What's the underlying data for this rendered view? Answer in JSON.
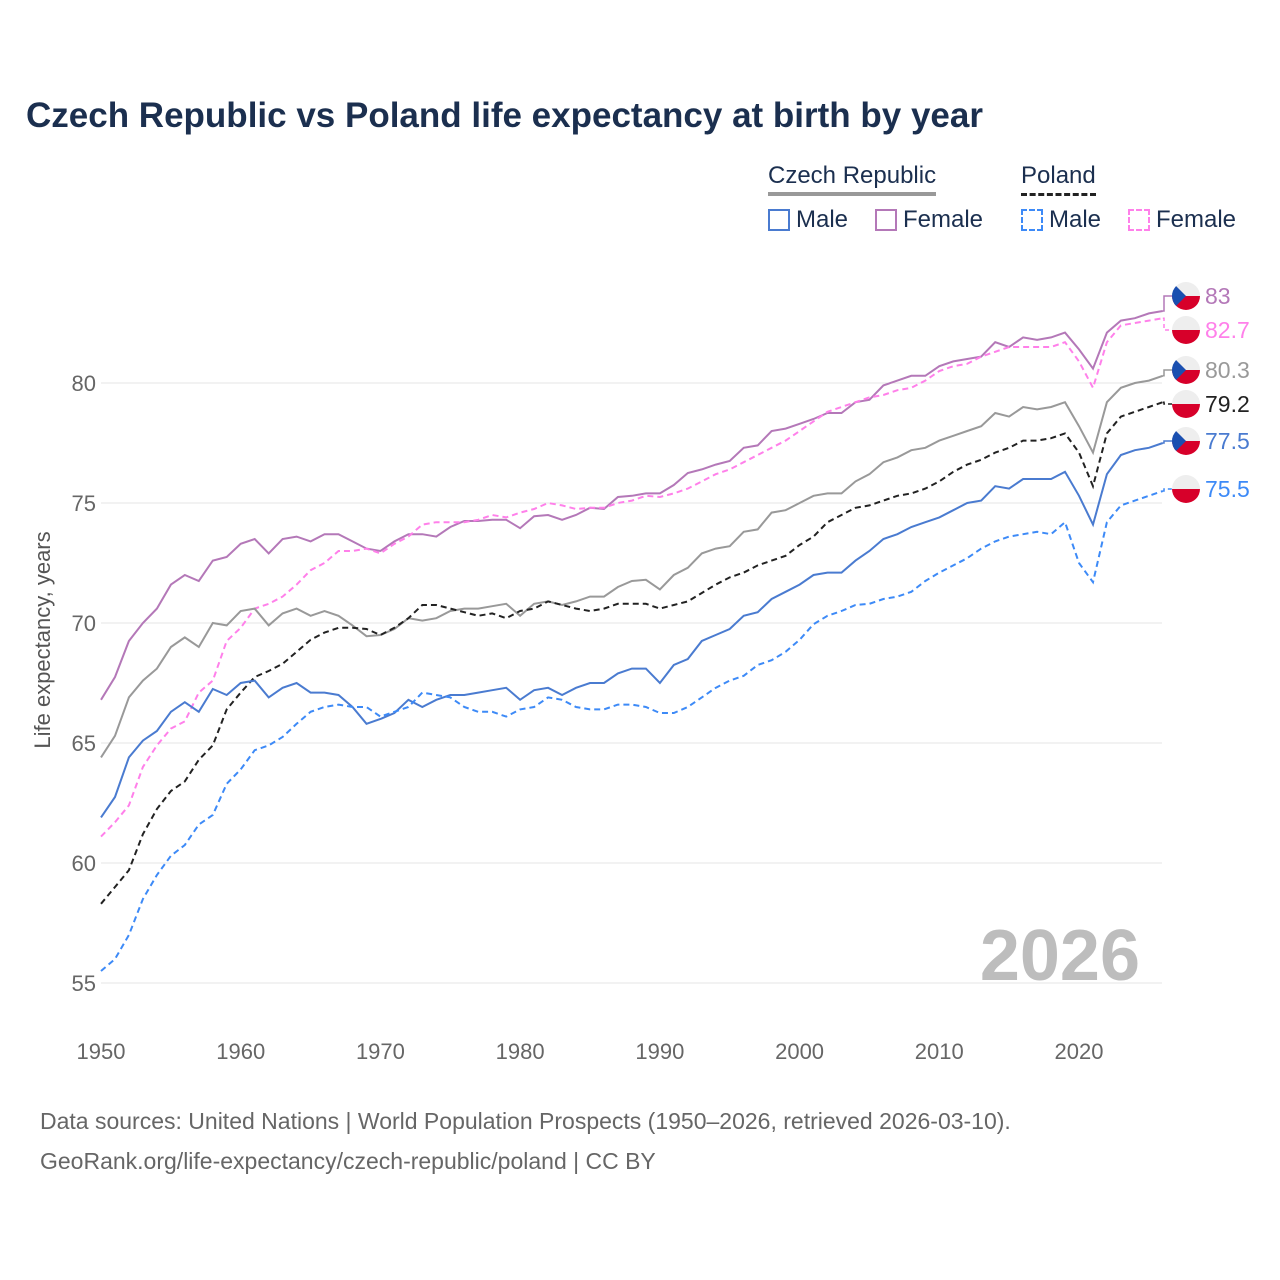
{
  "title": "Czech Republic vs Poland life expectancy at birth by year",
  "legend": {
    "groups": [
      {
        "name": "Czech Republic",
        "items": [
          "Male",
          "Female"
        ]
      },
      {
        "name": "Poland",
        "items": [
          "Male",
          "Female"
        ]
      }
    ]
  },
  "watermark_year": "2026",
  "sources": [
    "Data sources: United Nations | World Population Prospects (1950–2026, retrieved 2026-03-10).",
    "GeoRank.org/life-expectancy/czech-republic/poland | CC BY"
  ],
  "chart_data": {
    "type": "line",
    "title": "Czech Republic vs Poland life expectancy at birth by year",
    "xlabel": "",
    "ylabel": "Life expectancy, years",
    "xlim": [
      1950,
      2026
    ],
    "ylim": [
      55,
      84
    ],
    "xticks": [
      1950,
      1960,
      1970,
      1980,
      1990,
      2000,
      2010,
      2020
    ],
    "yticks": [
      55,
      60,
      65,
      70,
      75,
      80
    ],
    "grid": true,
    "legend": "top-right",
    "x_start": 1950,
    "series": [
      {
        "name": "Czech Republic Female",
        "country": "cz",
        "color": "#b478b8",
        "dash": false,
        "end_label": "83",
        "values": [
          66.8,
          67.75,
          69.25,
          70,
          70.6,
          71.6,
          72,
          71.75,
          72.6,
          72.75,
          73.3,
          73.5,
          72.9,
          73.5,
          73.6,
          73.4,
          73.7,
          73.7,
          73.4,
          73.1,
          73,
          73.4,
          73.7,
          73.7,
          73.6,
          74,
          74.25,
          74.25,
          74.3,
          74.3,
          73.95,
          74.45,
          74.5,
          74.3,
          74.5,
          74.8,
          74.75,
          75.25,
          75.3,
          75.4,
          75.4,
          75.75,
          76.25,
          76.4,
          76.6,
          76.75,
          77.3,
          77.4,
          78,
          78.1,
          78.3,
          78.5,
          78.75,
          78.75,
          79.2,
          79.3,
          79.9,
          80.1,
          80.3,
          80.3,
          80.7,
          80.9,
          81,
          81.1,
          81.7,
          81.5,
          81.9,
          81.8,
          81.9,
          82.1,
          81.4,
          80.6,
          82.1,
          82.6,
          82.7,
          82.9,
          83
        ]
      },
      {
        "name": "Poland Female",
        "country": "pl",
        "color": "#ff80ea",
        "dash": true,
        "end_label": "82.7",
        "values": [
          61.1,
          61.7,
          62.4,
          64,
          64.9,
          65.6,
          65.9,
          67.1,
          67.6,
          69.25,
          69.8,
          70.6,
          70.8,
          71.1,
          71.6,
          72.2,
          72.5,
          73,
          73,
          73.1,
          72.9,
          73.3,
          73.6,
          74.1,
          74.2,
          74.2,
          74.2,
          74.3,
          74.5,
          74.4,
          74.6,
          74.75,
          75,
          74.9,
          74.75,
          74.8,
          74.8,
          75,
          75.1,
          75.3,
          75.25,
          75.4,
          75.6,
          75.9,
          76.2,
          76.4,
          76.7,
          77,
          77.3,
          77.6,
          78,
          78.4,
          78.8,
          79,
          79.2,
          79.4,
          79.5,
          79.7,
          79.8,
          80.1,
          80.5,
          80.7,
          80.8,
          81.1,
          81.3,
          81.5,
          81.5,
          81.5,
          81.5,
          81.7,
          80.9,
          79.8,
          81.7,
          82.4,
          82.5,
          82.6,
          82.7
        ]
      },
      {
        "name": "Czech Republic",
        "country": "cz",
        "color": "#999999",
        "dash": false,
        "end_label": "80.3",
        "values": [
          64.4,
          65.3,
          66.9,
          67.6,
          68.1,
          69,
          69.4,
          69,
          70,
          69.9,
          70.5,
          70.6,
          69.9,
          70.4,
          70.6,
          70.3,
          70.5,
          70.3,
          69.9,
          69.45,
          69.5,
          69.75,
          70.2,
          70.1,
          70.2,
          70.5,
          70.6,
          70.6,
          70.7,
          70.8,
          70.3,
          70.8,
          70.9,
          70.75,
          70.9,
          71.1,
          71.1,
          71.5,
          71.75,
          71.8,
          71.4,
          72,
          72.3,
          72.9,
          73.1,
          73.2,
          73.8,
          73.9,
          74.6,
          74.7,
          75,
          75.3,
          75.4,
          75.4,
          75.9,
          76.2,
          76.7,
          76.9,
          77.2,
          77.3,
          77.6,
          77.8,
          78,
          78.2,
          78.75,
          78.6,
          79,
          78.9,
          79,
          79.2,
          78.2,
          77.1,
          79.2,
          79.8,
          80,
          80.1,
          80.3
        ]
      },
      {
        "name": "Poland",
        "country": "pl",
        "color": "#222222",
        "dash": true,
        "end_label": "79.2",
        "values": [
          58.3,
          59,
          59.7,
          61.2,
          62.25,
          63,
          63.4,
          64.3,
          64.9,
          66.4,
          67.1,
          67.75,
          68,
          68.3,
          68.8,
          69.3,
          69.6,
          69.8,
          69.8,
          69.75,
          69.5,
          69.8,
          70.2,
          70.75,
          70.75,
          70.6,
          70.45,
          70.3,
          70.4,
          70.2,
          70.5,
          70.6,
          70.9,
          70.75,
          70.6,
          70.5,
          70.6,
          70.8,
          70.8,
          70.8,
          70.6,
          70.75,
          70.9,
          71.25,
          71.6,
          71.9,
          72.1,
          72.4,
          72.6,
          72.8,
          73.25,
          73.6,
          74.2,
          74.5,
          74.8,
          74.9,
          75.1,
          75.3,
          75.4,
          75.6,
          75.9,
          76.3,
          76.6,
          76.8,
          77.1,
          77.3,
          77.6,
          77.6,
          77.7,
          77.9,
          77.1,
          75.7,
          77.9,
          78.6,
          78.8,
          79,
          79.2
        ]
      },
      {
        "name": "Czech Republic Male",
        "country": "cz",
        "color": "#4a7bd0",
        "dash": false,
        "end_label": "77.5",
        "values": [
          61.9,
          62.75,
          64.4,
          65.1,
          65.5,
          66.3,
          66.7,
          66.3,
          67.25,
          67,
          67.5,
          67.6,
          66.9,
          67.3,
          67.5,
          67.1,
          67.1,
          67,
          66.5,
          65.8,
          66,
          66.25,
          66.8,
          66.5,
          66.8,
          67,
          67,
          67.1,
          67.2,
          67.3,
          66.8,
          67.2,
          67.3,
          67,
          67.3,
          67.5,
          67.5,
          67.9,
          68.1,
          68.1,
          67.5,
          68.25,
          68.5,
          69.25,
          69.5,
          69.75,
          70.3,
          70.45,
          71,
          71.3,
          71.6,
          72,
          72.1,
          72.1,
          72.6,
          73,
          73.5,
          73.7,
          74,
          74.2,
          74.4,
          74.7,
          75,
          75.1,
          75.7,
          75.6,
          76,
          76,
          76,
          76.3,
          75.3,
          74.1,
          76.2,
          77,
          77.2,
          77.3,
          77.5
        ]
      },
      {
        "name": "Poland Male",
        "country": "pl",
        "color": "#3d8af7",
        "dash": true,
        "end_label": "75.5",
        "values": [
          55.5,
          56,
          57,
          58.5,
          59.5,
          60.3,
          60.75,
          61.6,
          62,
          63.3,
          63.9,
          64.7,
          64.9,
          65.25,
          65.8,
          66.3,
          66.5,
          66.6,
          66.5,
          66.5,
          66.1,
          66.3,
          66.5,
          67.1,
          67,
          66.9,
          66.5,
          66.3,
          66.3,
          66.1,
          66.4,
          66.5,
          66.9,
          66.8,
          66.5,
          66.4,
          66.4,
          66.6,
          66.6,
          66.5,
          66.25,
          66.25,
          66.5,
          66.9,
          67.3,
          67.6,
          67.8,
          68.25,
          68.45,
          68.8,
          69.3,
          69.95,
          70.3,
          70.5,
          70.75,
          70.8,
          71,
          71.1,
          71.3,
          71.75,
          72.1,
          72.4,
          72.7,
          73.1,
          73.4,
          73.6,
          73.7,
          73.8,
          73.7,
          74.2,
          72.5,
          71.7,
          74.2,
          74.9,
          75.1,
          75.3,
          75.5
        ]
      }
    ]
  }
}
